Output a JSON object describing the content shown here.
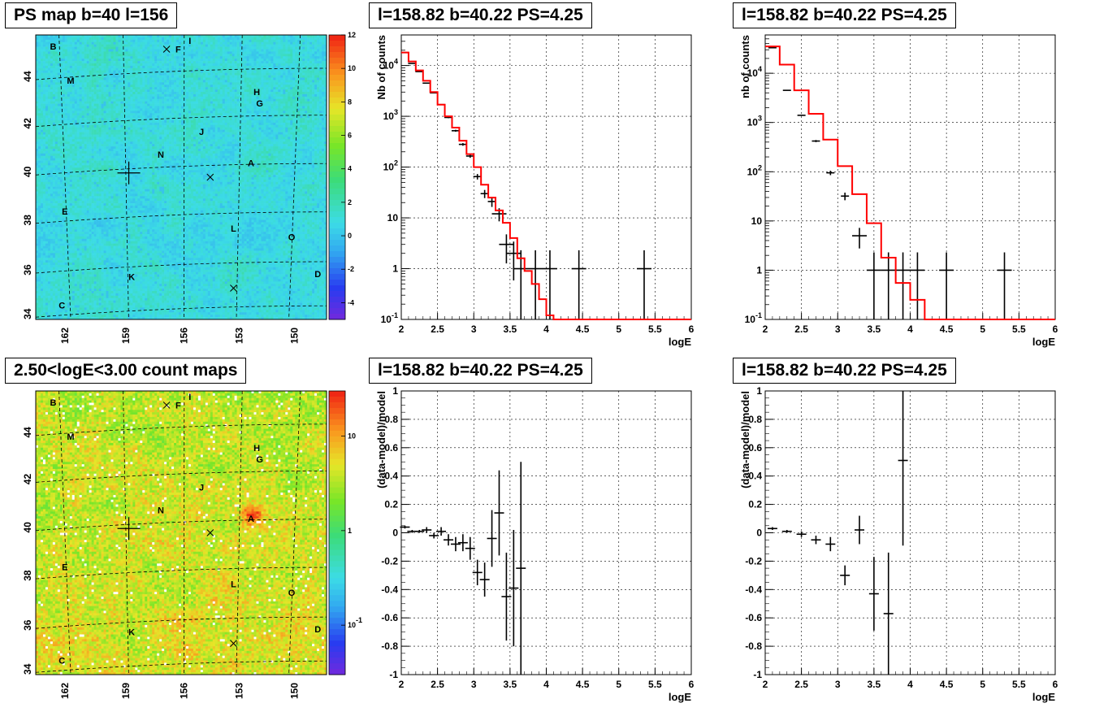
{
  "chart_data": [
    {
      "type": "heatmap",
      "title": "PS map b=40 l=156",
      "x_ticks": [
        "162",
        "159",
        "156",
        "153",
        "150"
      ],
      "y_ticks": [
        "34",
        "36",
        "38",
        "40",
        "42",
        "44"
      ],
      "colorbar_ticks": [
        "-4",
        "-2",
        "0",
        "2",
        "4",
        "6",
        "8",
        "10",
        "12"
      ],
      "colorbar_range": [
        -5,
        12
      ],
      "colorbar_scale": "linear",
      "source_labels": [
        "B",
        "F",
        "I",
        "M",
        "H",
        "G",
        "J",
        "N",
        "A",
        "E",
        "L",
        "O",
        "K",
        "D",
        "C"
      ],
      "grid": true
    },
    {
      "type": "line",
      "title": "l=158.82 b=40.22 PS=4.25",
      "xlabel": "logE",
      "ylabel": "Nb of counts",
      "xlim": [
        2,
        6
      ],
      "ylim": [
        0.1,
        40000
      ],
      "yscale": "log",
      "x_ticks": [
        "2",
        "2.5",
        "3",
        "3.5",
        "4",
        "4.5",
        "5",
        "5.5",
        "6"
      ],
      "y_ticks": [
        "10^-1",
        "1",
        "10",
        "10^2",
        "10^3",
        "10^4"
      ],
      "grid": true,
      "series": [
        {
          "style": "data points with error bars",
          "x": [
            2.05,
            2.15,
            2.25,
            2.35,
            2.45,
            2.55,
            2.65,
            2.75,
            2.85,
            2.95,
            3.05,
            3.15,
            3.25,
            3.35,
            3.45,
            3.55,
            3.65,
            3.85,
            4.05,
            4.45,
            5.35
          ],
          "y": [
            18000,
            11000,
            7600,
            4500,
            2900,
            1700,
            950,
            520,
            280,
            165,
            65,
            30,
            21,
            12,
            3,
            2,
            1,
            1,
            1,
            1,
            1
          ]
        },
        {
          "style": "model histogram",
          "color": "#ff0000",
          "x": [
            2.0,
            2.1,
            2.2,
            2.3,
            2.4,
            2.5,
            2.6,
            2.7,
            2.8,
            2.9,
            3.0,
            3.1,
            3.2,
            3.3,
            3.4,
            3.5,
            3.6,
            3.7,
            3.8,
            3.9,
            4.0,
            4.1,
            4.2,
            4.3,
            6.0
          ],
          "y": [
            18000,
            12000,
            8000,
            5000,
            3000,
            1700,
            1000,
            600,
            330,
            180,
            100,
            45,
            25,
            14,
            8,
            4,
            1.6,
            0.9,
            0.5,
            0.25,
            0.12,
            0.1,
            0.1,
            0.1,
            0.1
          ]
        }
      ]
    },
    {
      "type": "line",
      "title": "l=158.82 b=40.22 PS=4.25",
      "xlabel": "logE",
      "ylabel": "nb of counts",
      "xlim": [
        2,
        6
      ],
      "ylim": [
        0.1,
        60000
      ],
      "yscale": "log",
      "x_ticks": [
        "2",
        "2.5",
        "3",
        "3.5",
        "4",
        "4.5",
        "5",
        "5.5",
        "6"
      ],
      "y_ticks": [
        "10^-1",
        "1",
        "10",
        "10^2",
        "10^3",
        "10^4"
      ],
      "grid": true,
      "series": [
        {
          "style": "data points with error bars",
          "x": [
            2.1,
            2.3,
            2.5,
            2.7,
            2.9,
            3.1,
            3.3,
            3.5,
            3.7,
            3.9,
            4.1,
            4.5,
            5.3
          ],
          "y": [
            33000,
            4500,
            1400,
            420,
            95,
            32,
            5,
            1,
            1,
            1,
            1,
            1,
            1
          ]
        },
        {
          "style": "model histogram",
          "color": "#ff0000",
          "x": [
            2.0,
            2.2,
            2.4,
            2.6,
            2.8,
            3.0,
            3.2,
            3.4,
            3.6,
            3.8,
            4.0,
            4.2,
            6.0
          ],
          "y": [
            35000,
            15000,
            4500,
            1500,
            450,
            130,
            35,
            9,
            1.8,
            0.55,
            0.25,
            0.1,
            0.1
          ]
        }
      ]
    },
    {
      "type": "heatmap",
      "title": "2.50<logE<3.00 count maps",
      "x_ticks": [
        "162",
        "159",
        "156",
        "153",
        "150"
      ],
      "y_ticks": [
        "34",
        "36",
        "38",
        "40",
        "42",
        "44"
      ],
      "colorbar_ticks": [
        "10^-1",
        "1",
        "10"
      ],
      "colorbar_range": [
        0.03,
        30
      ],
      "colorbar_scale": "log",
      "source_labels": [
        "B",
        "F",
        "I",
        "M",
        "H",
        "G",
        "J",
        "N",
        "A",
        "E",
        "L",
        "O",
        "K",
        "D",
        "C"
      ],
      "grid": true
    },
    {
      "type": "scatter",
      "title": "l=158.82 b=40.22 PS=4.25",
      "xlabel": "logE",
      "ylabel": "(data-model)/model",
      "xlim": [
        2,
        6
      ],
      "ylim": [
        -1,
        1
      ],
      "x_ticks": [
        "2",
        "2.5",
        "3",
        "3.5",
        "4",
        "4.5",
        "5",
        "5.5",
        "6"
      ],
      "y_ticks": [
        "-1",
        "-0.8",
        "-0.6",
        "-0.4",
        "-0.2",
        "0",
        "0.2",
        "0.4",
        "0.6",
        "0.8",
        "1"
      ],
      "grid": true,
      "series": [
        {
          "style": "data points with error bars",
          "x": [
            2.05,
            2.15,
            2.25,
            2.35,
            2.45,
            2.55,
            2.65,
            2.75,
            2.85,
            2.95,
            3.05,
            3.15,
            3.25,
            3.35,
            3.45,
            3.55,
            3.65
          ],
          "y": [
            0.04,
            0.01,
            0.01,
            0.02,
            -0.02,
            0.01,
            -0.05,
            -0.08,
            -0.07,
            -0.11,
            -0.28,
            -0.33,
            -0.04,
            0.14,
            -0.45,
            -0.39,
            -0.25
          ],
          "err": [
            0.01,
            0.01,
            0.01,
            0.02,
            0.02,
            0.03,
            0.04,
            0.05,
            0.06,
            0.08,
            0.09,
            0.12,
            0.2,
            0.3,
            0.31,
            0.41,
            0.75
          ]
        }
      ]
    },
    {
      "type": "scatter",
      "title": "l=158.82 b=40.22 PS=4.25",
      "xlabel": "logE",
      "ylabel": "(data-model)/model",
      "xlim": [
        2,
        6
      ],
      "ylim": [
        -1,
        1
      ],
      "x_ticks": [
        "2",
        "2.5",
        "3",
        "3.5",
        "4",
        "4.5",
        "5",
        "5.5",
        "6"
      ],
      "y_ticks": [
        "-1",
        "-0.8",
        "-0.6",
        "-0.4",
        "-0.2",
        "0",
        "0.2",
        "0.4",
        "0.6",
        "0.8",
        "1"
      ],
      "grid": true,
      "series": [
        {
          "style": "data points with error bars",
          "x": [
            2.1,
            2.3,
            2.5,
            2.7,
            2.9,
            3.1,
            3.3,
            3.5,
            3.7,
            3.9
          ],
          "y": [
            0.03,
            0.01,
            -0.01,
            -0.05,
            -0.08,
            -0.3,
            0.02,
            -0.43,
            -0.57,
            0.51
          ],
          "err": [
            0.01,
            0.01,
            0.02,
            0.03,
            0.05,
            0.07,
            0.1,
            0.26,
            0.43,
            0.6
          ]
        }
      ]
    }
  ]
}
